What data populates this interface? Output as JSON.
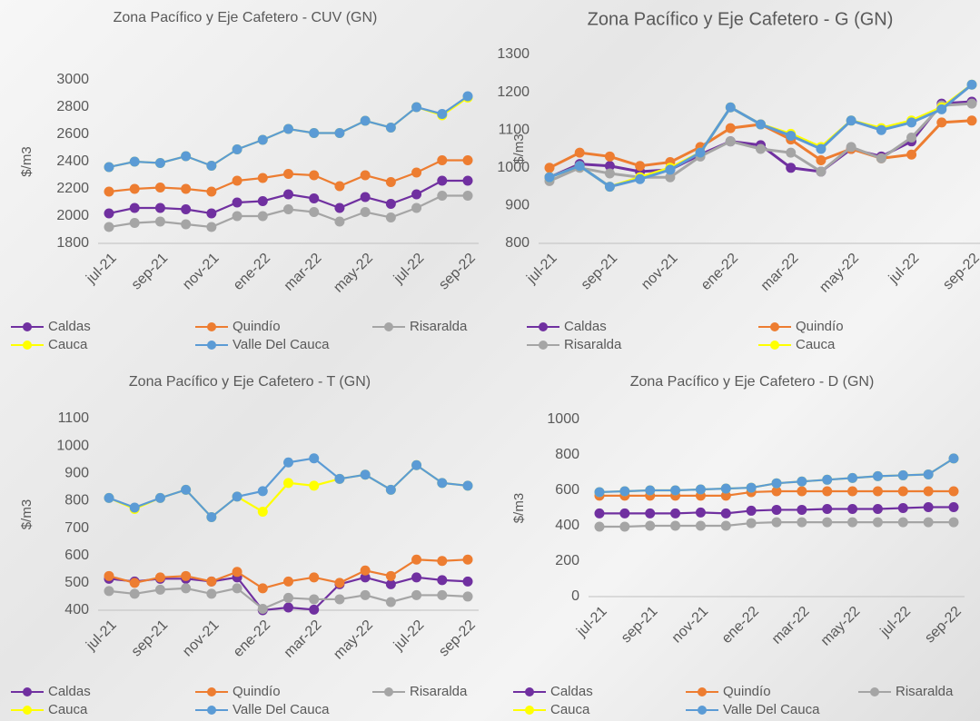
{
  "chart_data": [
    {
      "type": "line",
      "title": "Zona Pacífico y Eje Cafetero  - CUV (GN)",
      "y_label": "$/m3",
      "categories": [
        "jul-21",
        null,
        "sep-21",
        null,
        "nov-21",
        null,
        "ene-22",
        null,
        "mar-22",
        null,
        "may-22",
        null,
        "jul-22",
        null,
        "sep-22"
      ],
      "ylim": [
        1800,
        3000
      ],
      "yticks": [
        1800,
        2000,
        2200,
        2400,
        2600,
        2800,
        3000
      ],
      "series": [
        {
          "name": "Caldas",
          "color": "#7030a0",
          "values": [
            2020,
            2060,
            2060,
            2050,
            2020,
            2100,
            2110,
            2160,
            2130,
            2060,
            2140,
            2090,
            2160,
            2260,
            2260
          ]
        },
        {
          "name": "Quindío",
          "color": "#ed7d31",
          "values": [
            2180,
            2200,
            2210,
            2200,
            2180,
            2260,
            2280,
            2310,
            2300,
            2220,
            2300,
            2250,
            2320,
            2410,
            2410
          ]
        },
        {
          "name": "Risaralda",
          "color": "#a5a5a5",
          "values": [
            1920,
            1950,
            1960,
            1940,
            1920,
            2000,
            2000,
            2050,
            2030,
            1960,
            2030,
            1990,
            2060,
            2150,
            2150
          ]
        },
        {
          "name": "Cauca",
          "color": "#ffff00",
          "values": [
            2360,
            2400,
            2390,
            2440,
            2370,
            2490,
            2560,
            2640,
            2610,
            2610,
            2700,
            2650,
            2800,
            2740,
            2870
          ]
        },
        {
          "name": "Valle Del Cauca",
          "color": "#5b9bd5",
          "values": [
            2360,
            2400,
            2390,
            2440,
            2370,
            2490,
            2560,
            2640,
            2610,
            2610,
            2700,
            2650,
            2800,
            2750,
            2880
          ]
        }
      ]
    },
    {
      "type": "line",
      "title": "Zona Pacífico y Eje Cafetero  - G (GN)",
      "y_label": "$/m3",
      "categories": [
        "jul-21",
        null,
        "sep-21",
        null,
        "nov-21",
        null,
        "ene-22",
        null,
        "mar-22",
        null,
        "may-22",
        null,
        "jul-22",
        null,
        "sep-22"
      ],
      "ylim": [
        800,
        1300
      ],
      "yticks": [
        800,
        900,
        1000,
        1100,
        1200,
        1300
      ],
      "series": [
        {
          "name": "Caldas",
          "color": "#7030a0",
          "values": [
            975,
            1010,
            1005,
            990,
            995,
            1035,
            1070,
            1060,
            1000,
            990,
            1050,
            1030,
            1070,
            1170,
            1175
          ]
        },
        {
          "name": "Quindío",
          "color": "#ed7d31",
          "values": [
            1000,
            1040,
            1030,
            1005,
            1015,
            1055,
            1105,
            1115,
            1075,
            1020,
            1050,
            1025,
            1035,
            1120,
            1125
          ]
        },
        {
          "name": "Risaralda",
          "color": "#a5a5a5",
          "values": [
            965,
            1000,
            985,
            975,
            975,
            1030,
            1070,
            1050,
            1040,
            990,
            1055,
            1025,
            1080,
            1165,
            1170
          ]
        },
        {
          "name": "Cauca",
          "color": "#ffff00",
          "values": [
            975,
            1005,
            950,
            975,
            1000,
            1040,
            1160,
            1115,
            1090,
            1055,
            1125,
            1105,
            1125,
            1160,
            1220
          ]
        },
        {
          "color": "#5b9bd5",
          "values": [
            975,
            1005,
            950,
            970,
            995,
            1040,
            1160,
            1115,
            1085,
            1050,
            1125,
            1100,
            1120,
            1155,
            1220
          ]
        }
      ]
    },
    {
      "type": "line",
      "title": "Zona Pacífico y Eje Cafetero  - T (GN)",
      "y_label": "$/m3",
      "categories": [
        "jul-21",
        null,
        "sep-21",
        null,
        "nov-21",
        null,
        "ene-22",
        null,
        "mar-22",
        null,
        "may-22",
        null,
        "jul-22",
        null,
        "sep-22"
      ],
      "ylim": [
        400,
        1100
      ],
      "yticks": [
        400,
        500,
        600,
        700,
        800,
        900,
        1000,
        1100
      ],
      "series": [
        {
          "name": "Caldas",
          "color": "#7030a0",
          "values": [
            515,
            505,
            515,
            515,
            505,
            520,
            400,
            410,
            402,
            495,
            520,
            495,
            520,
            510,
            505
          ]
        },
        {
          "name": "Quindío",
          "color": "#ed7d31",
          "values": [
            525,
            500,
            520,
            525,
            505,
            540,
            480,
            505,
            520,
            500,
            545,
            525,
            585,
            580,
            585
          ]
        },
        {
          "name": "Risaralda",
          "color": "#a5a5a5",
          "values": [
            470,
            460,
            475,
            480,
            460,
            480,
            405,
            445,
            440,
            440,
            455,
            430,
            455,
            455,
            450
          ]
        },
        {
          "name": "Cauca",
          "color": "#ffff00",
          "values": [
            810,
            770,
            810,
            840,
            740,
            815,
            760,
            865,
            855,
            880,
            895,
            840,
            930,
            865,
            855
          ]
        },
        {
          "name": "Valle Del Cauca",
          "color": "#5b9bd5",
          "values": [
            810,
            775,
            810,
            840,
            740,
            815,
            835,
            940,
            955,
            880,
            895,
            840,
            930,
            865,
            855
          ]
        }
      ]
    },
    {
      "type": "line",
      "title": "Zona Pacífico y Eje Cafetero  - D (GN)",
      "y_label": "$/m3",
      "categories": [
        "jul-21",
        null,
        "sep-21",
        null,
        "nov-21",
        null,
        "ene-22",
        null,
        "mar-22",
        null,
        "may-22",
        null,
        "jul-22",
        null,
        "sep-22"
      ],
      "ylim": [
        0,
        1000
      ],
      "yticks": [
        0,
        200,
        400,
        600,
        800,
        1000
      ],
      "series": [
        {
          "name": "Caldas",
          "color": "#7030a0",
          "values": [
            470,
            470,
            470,
            470,
            475,
            470,
            485,
            490,
            490,
            495,
            495,
            495,
            500,
            505,
            505
          ]
        },
        {
          "name": "Quindío",
          "color": "#ed7d31",
          "values": [
            570,
            570,
            570,
            570,
            570,
            570,
            590,
            595,
            595,
            595,
            595,
            595,
            595,
            595,
            595
          ]
        },
        {
          "name": "Risaralda",
          "color": "#a5a5a5",
          "values": [
            395,
            395,
            400,
            400,
            400,
            400,
            415,
            420,
            420,
            420,
            420,
            420,
            420,
            420,
            420
          ]
        },
        {
          "name": "Cauca",
          "color": "#ffff00",
          "values": [
            590,
            595,
            600,
            600,
            605,
            610,
            615,
            640,
            650,
            660,
            670,
            680,
            685,
            690,
            780
          ]
        },
        {
          "name": "Valle Del Cauca",
          "color": "#5b9bd5",
          "values": [
            590,
            595,
            600,
            600,
            605,
            610,
            615,
            640,
            650,
            660,
            670,
            680,
            685,
            690,
            780
          ]
        }
      ]
    }
  ]
}
